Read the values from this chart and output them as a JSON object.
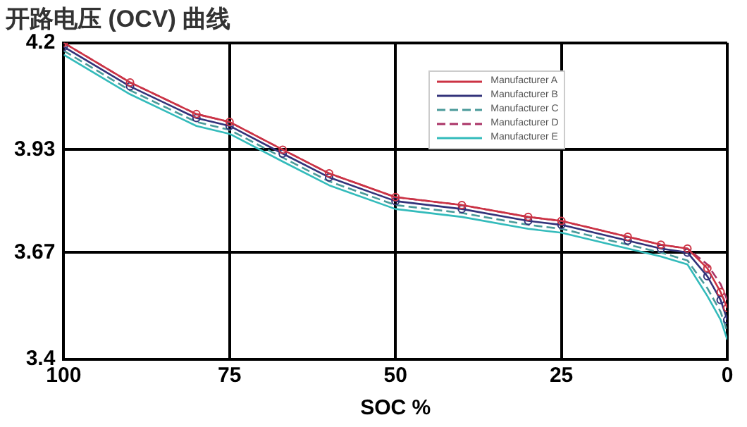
{
  "chart_data": {
    "type": "line",
    "title": "开路电压 (OCV) 曲线",
    "xlabel": "SOC %",
    "x": [
      100,
      90,
      80,
      75,
      67,
      60,
      50,
      40,
      30,
      25,
      15,
      10,
      6,
      3,
      1,
      0
    ],
    "series": [
      {
        "name": "Manufacturer A",
        "color": "#cc3344",
        "marker": "circle",
        "line_style": "solid",
        "values": [
          4.2,
          4.1,
          4.02,
          4.0,
          3.93,
          3.87,
          3.81,
          3.79,
          3.76,
          3.75,
          3.71,
          3.69,
          3.68,
          3.63,
          3.57,
          3.53
        ]
      },
      {
        "name": "Manufacturer B",
        "color": "#33337a",
        "marker": "circle",
        "line_style": "solid",
        "values": [
          4.19,
          4.09,
          4.01,
          3.99,
          3.92,
          3.86,
          3.8,
          3.78,
          3.75,
          3.74,
          3.7,
          3.68,
          3.67,
          3.61,
          3.55,
          3.5
        ]
      },
      {
        "name": "Manufacturer C",
        "color": "#4a9a9a",
        "marker": "none",
        "line_style": "dashed",
        "values": [
          4.18,
          4.08,
          4.0,
          3.98,
          3.91,
          3.85,
          3.79,
          3.77,
          3.74,
          3.73,
          3.69,
          3.67,
          3.65,
          3.58,
          3.52,
          3.47
        ]
      },
      {
        "name": "Manufacturer D",
        "color": "#aa3366",
        "marker": "none",
        "line_style": "dashed",
        "values": [
          4.2,
          4.1,
          4.02,
          4.0,
          3.93,
          3.87,
          3.81,
          3.79,
          3.76,
          3.75,
          3.71,
          3.69,
          3.68,
          3.64,
          3.59,
          3.55
        ]
      },
      {
        "name": "Manufacturer E",
        "color": "#33bbbb",
        "marker": "none",
        "line_style": "solid",
        "values": [
          4.17,
          4.07,
          3.99,
          3.97,
          3.9,
          3.84,
          3.78,
          3.76,
          3.73,
          3.72,
          3.68,
          3.66,
          3.64,
          3.56,
          3.5,
          3.45
        ]
      }
    ],
    "xlim": [
      100,
      0
    ],
    "xticks": [
      100,
      75,
      50,
      25,
      0
    ],
    "ylim": [
      3.4,
      4.2
    ],
    "yticks": [
      3.4,
      3.67,
      3.93,
      4.2
    ],
    "grid": true,
    "legend": "top right"
  }
}
